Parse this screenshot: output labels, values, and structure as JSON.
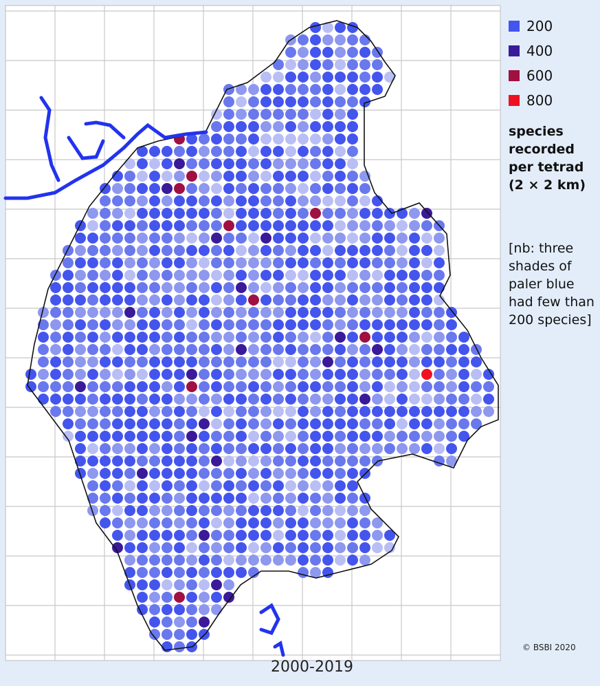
{
  "legend": {
    "items": [
      {
        "label": "200",
        "color": "#4455ee"
      },
      {
        "label": "400",
        "color": "#3a1a99"
      },
      {
        "label": "600",
        "color": "#a01040"
      },
      {
        "label": "800",
        "color": "#ee1122"
      }
    ],
    "title": "species recorded per tetrad (2 × 2 km)",
    "note": "[nb: three shades of paler blue had few than 200 species]"
  },
  "footer": {
    "period": "2000-2019",
    "copyright": "© BSBI 2020"
  }
}
